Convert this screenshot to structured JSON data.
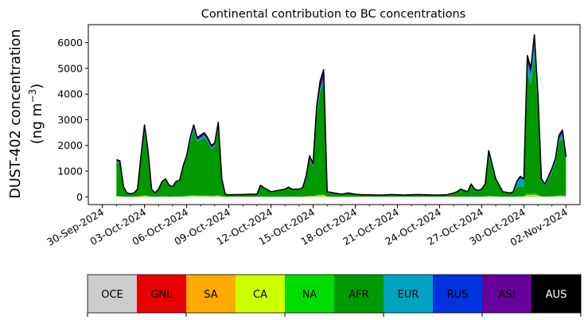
{
  "chart_data": {
    "type": "area",
    "stacked": true,
    "title": "Continental contribution to BC concentrations",
    "ylabel_line1": "DUST-402 concentration",
    "ylabel_line2_prefix": "(ng m",
    "ylabel_line2_sup": "−3",
    "ylabel_line2_suffix": ")",
    "xlim": [
      "2024-09-29",
      "2024-11-03"
    ],
    "ylim": [
      -300,
      6700
    ],
    "yticks": [
      0,
      1000,
      2000,
      3000,
      4000,
      5000,
      6000
    ],
    "xticks": [
      {
        "date": "2024-09-30",
        "label": "30-Sep-2024"
      },
      {
        "date": "2024-10-03",
        "label": "03-Oct-2024"
      },
      {
        "date": "2024-10-06",
        "label": "06-Oct-2024"
      },
      {
        "date": "2024-10-09",
        "label": "09-Oct-2024"
      },
      {
        "date": "2024-10-12",
        "label": "12-Oct-2024"
      },
      {
        "date": "2024-10-15",
        "label": "15-Oct-2024"
      },
      {
        "date": "2024-10-18",
        "label": "18-Oct-2024"
      },
      {
        "date": "2024-10-21",
        "label": "21-Oct-2024"
      },
      {
        "date": "2024-10-24",
        "label": "24-Oct-2024"
      },
      {
        "date": "2024-10-27",
        "label": "27-Oct-2024"
      },
      {
        "date": "2024-10-30",
        "label": "30-Oct-2024"
      },
      {
        "date": "2024-11-02",
        "label": "02-Nov-2024"
      }
    ],
    "x": [
      "2024-10-01T00:00",
      "2024-10-01T06:00",
      "2024-10-01T12:00",
      "2024-10-01T18:00",
      "2024-10-02T00:00",
      "2024-10-02T06:00",
      "2024-10-02T12:00",
      "2024-10-02T18:00",
      "2024-10-03T00:00",
      "2024-10-03T06:00",
      "2024-10-03T12:00",
      "2024-10-03T18:00",
      "2024-10-04T00:00",
      "2024-10-04T06:00",
      "2024-10-04T12:00",
      "2024-10-04T18:00",
      "2024-10-05T00:00",
      "2024-10-05T06:00",
      "2024-10-05T12:00",
      "2024-10-05T18:00",
      "2024-10-06T00:00",
      "2024-10-06T06:00",
      "2024-10-06T12:00",
      "2024-10-06T18:00",
      "2024-10-07T00:00",
      "2024-10-07T06:00",
      "2024-10-07T12:00",
      "2024-10-07T18:00",
      "2024-10-08T00:00",
      "2024-10-08T06:00",
      "2024-10-08T12:00",
      "2024-10-08T18:00",
      "2024-10-09T00:00",
      "2024-10-09T12:00",
      "2024-10-10T00:00",
      "2024-10-10T12:00",
      "2024-10-11T00:00",
      "2024-10-11T06:00",
      "2024-10-11T12:00",
      "2024-10-12T00:00",
      "2024-10-12T12:00",
      "2024-10-13T00:00",
      "2024-10-13T06:00",
      "2024-10-13T12:00",
      "2024-10-14T00:00",
      "2024-10-14T06:00",
      "2024-10-14T12:00",
      "2024-10-14T18:00",
      "2024-10-15T00:00",
      "2024-10-15T06:00",
      "2024-10-15T12:00",
      "2024-10-15T18:00",
      "2024-10-16T00:00",
      "2024-10-16T12:00",
      "2024-10-17T00:00",
      "2024-10-17T12:00",
      "2024-10-18T00:00",
      "2024-10-18T12:00",
      "2024-10-19T00:00",
      "2024-10-19T12:00",
      "2024-10-20T00:00",
      "2024-10-20T12:00",
      "2024-10-21T00:00",
      "2024-10-21T12:00",
      "2024-10-22T00:00",
      "2024-10-22T12:00",
      "2024-10-23T00:00",
      "2024-10-23T12:00",
      "2024-10-24T00:00",
      "2024-10-24T12:00",
      "2024-10-25T00:00",
      "2024-10-25T06:00",
      "2024-10-25T12:00",
      "2024-10-26T00:00",
      "2024-10-26T06:00",
      "2024-10-26T12:00",
      "2024-10-26T18:00",
      "2024-10-27T00:00",
      "2024-10-27T06:00",
      "2024-10-27T12:00",
      "2024-10-28T00:00",
      "2024-10-28T12:00",
      "2024-10-29T00:00",
      "2024-10-29T06:00",
      "2024-10-29T12:00",
      "2024-10-29T18:00",
      "2024-10-30T00:00",
      "2024-10-30T06:00",
      "2024-10-30T12:00",
      "2024-10-30T18:00",
      "2024-10-31T00:00",
      "2024-10-31T06:00",
      "2024-10-31T12:00",
      "2024-10-31T18:00",
      "2024-11-01T00:00",
      "2024-11-01T06:00",
      "2024-11-01T12:00",
      "2024-11-01T18:00",
      "2024-11-02T00:00"
    ],
    "total": [
      1450,
      1400,
      400,
      150,
      120,
      150,
      300,
      1600,
      2800,
      1800,
      300,
      150,
      300,
      600,
      700,
      450,
      400,
      600,
      650,
      1200,
      1600,
      2300,
      2800,
      2300,
      2400,
      2500,
      2300,
      2000,
      2100,
      2900,
      700,
      100,
      80,
      90,
      90,
      100,
      100,
      450,
      350,
      200,
      250,
      300,
      380,
      300,
      300,
      350,
      800,
      1600,
      1300,
      3500,
      4500,
      4950,
      200,
      150,
      100,
      150,
      100,
      80,
      80,
      70,
      70,
      90,
      80,
      70,
      80,
      90,
      80,
      70,
      70,
      80,
      150,
      200,
      300,
      200,
      500,
      300,
      250,
      300,
      500,
      1800,
      700,
      200,
      150,
      200,
      600,
      800,
      700,
      5500,
      5000,
      6300,
      4000,
      700,
      500,
      800,
      1100,
      1500,
      2400,
      2600,
      1550
    ],
    "series": [
      {
        "name": "OCE",
        "color": "#cccccc",
        "values": [
          2,
          2,
          1,
          1,
          1,
          1,
          1,
          3,
          5,
          3,
          1,
          1,
          1,
          2,
          2,
          1,
          1,
          2,
          2,
          3,
          4,
          5,
          6,
          5,
          5,
          5,
          5,
          4,
          4,
          5,
          2,
          1,
          1,
          1,
          1,
          1,
          1,
          2,
          1,
          1,
          1,
          1,
          2,
          1,
          1,
          1,
          2,
          3,
          3,
          6,
          8,
          8,
          1,
          1,
          1,
          1,
          1,
          1,
          1,
          1,
          1,
          1,
          1,
          1,
          1,
          1,
          1,
          1,
          1,
          1,
          1,
          1,
          1,
          1,
          2,
          1,
          1,
          1,
          2,
          4,
          2,
          1,
          1,
          1,
          2,
          3,
          3,
          10,
          10,
          12,
          8,
          2,
          2,
          2,
          3,
          4,
          5,
          5,
          4
        ]
      },
      {
        "name": "GNL",
        "color": "#e60000",
        "values": [
          2,
          2,
          1,
          1,
          1,
          1,
          1,
          3,
          5,
          3,
          1,
          1,
          1,
          2,
          2,
          1,
          1,
          2,
          2,
          3,
          4,
          5,
          6,
          5,
          5,
          5,
          5,
          4,
          4,
          5,
          2,
          1,
          1,
          1,
          1,
          1,
          1,
          2,
          1,
          1,
          1,
          1,
          2,
          1,
          1,
          1,
          2,
          3,
          3,
          6,
          8,
          8,
          1,
          1,
          1,
          1,
          1,
          1,
          1,
          1,
          1,
          1,
          1,
          1,
          1,
          1,
          1,
          1,
          1,
          1,
          1,
          1,
          1,
          1,
          2,
          1,
          1,
          1,
          2,
          4,
          2,
          1,
          1,
          1,
          2,
          3,
          3,
          10,
          10,
          12,
          8,
          2,
          2,
          2,
          3,
          4,
          5,
          5,
          4
        ]
      },
      {
        "name": "SA",
        "color": "#ffaa00",
        "values": [
          3,
          3,
          1,
          1,
          1,
          1,
          1,
          4,
          6,
          4,
          1,
          1,
          1,
          2,
          2,
          1,
          1,
          2,
          2,
          4,
          5,
          6,
          7,
          6,
          6,
          6,
          6,
          5,
          5,
          7,
          2,
          1,
          1,
          1,
          1,
          1,
          1,
          2,
          1,
          1,
          1,
          1,
          2,
          1,
          1,
          1,
          3,
          4,
          4,
          8,
          10,
          10,
          1,
          1,
          1,
          1,
          1,
          1,
          1,
          1,
          1,
          1,
          1,
          1,
          1,
          1,
          1,
          1,
          1,
          1,
          1,
          1,
          1,
          1,
          2,
          1,
          1,
          1,
          2,
          5,
          2,
          1,
          1,
          1,
          2,
          3,
          3,
          12,
          12,
          14,
          10,
          2,
          2,
          3,
          4,
          5,
          6,
          6,
          5
        ]
      },
      {
        "name": "CA",
        "color": "#ccff00",
        "values": [
          10,
          10,
          3,
          1,
          1,
          1,
          2,
          12,
          20,
          13,
          2,
          1,
          2,
          4,
          5,
          3,
          3,
          4,
          5,
          8,
          11,
          16,
          20,
          16,
          17,
          18,
          16,
          14,
          15,
          20,
          5,
          1,
          1,
          1,
          1,
          1,
          1,
          3,
          3,
          1,
          2,
          2,
          3,
          2,
          2,
          2,
          6,
          11,
          9,
          25,
          32,
          35,
          1,
          1,
          1,
          1,
          1,
          1,
          1,
          1,
          1,
          1,
          1,
          1,
          1,
          1,
          1,
          1,
          1,
          1,
          1,
          1,
          2,
          1,
          4,
          2,
          2,
          2,
          4,
          13,
          5,
          1,
          1,
          1,
          4,
          6,
          5,
          40,
          35,
          45,
          28,
          5,
          4,
          6,
          8,
          11,
          17,
          18,
          11
        ]
      },
      {
        "name": "NA",
        "color": "#00dd00",
        "values": [
          15,
          14,
          4,
          2,
          1,
          2,
          3,
          16,
          28,
          18,
          3,
          2,
          3,
          6,
          7,
          5,
          4,
          6,
          7,
          12,
          16,
          23,
          28,
          23,
          24,
          25,
          23,
          20,
          21,
          29,
          7,
          1,
          1,
          1,
          1,
          1,
          1,
          5,
          4,
          2,
          3,
          3,
          4,
          3,
          3,
          4,
          8,
          16,
          13,
          35,
          45,
          50,
          2,
          2,
          1,
          2,
          1,
          1,
          1,
          1,
          1,
          1,
          1,
          1,
          1,
          1,
          1,
          1,
          1,
          1,
          2,
          2,
          3,
          2,
          5,
          3,
          3,
          3,
          5,
          18,
          7,
          2,
          2,
          2,
          6,
          8,
          7,
          55,
          50,
          63,
          40,
          7,
          5,
          8,
          11,
          15,
          24,
          26,
          16
        ]
      },
      {
        "name": "AFR",
        "color": "#009900",
        "values": [
          1310,
          1265,
          360,
          133,
          106,
          133,
          266,
          1440,
          2520,
          1620,
          270,
          135,
          272,
          540,
          630,
          405,
          362,
          542,
          588,
          1085,
          1448,
          2080,
          2530,
          2080,
          2170,
          2260,
          2080,
          1808,
          1900,
          2620,
          630,
          82,
          63,
          73,
          73,
          82,
          82,
          400,
          308,
          176,
          220,
          265,
          333,
          265,
          262,
          305,
          700,
          1405,
          1140,
          3080,
          3960,
          4360,
          166,
          124,
          82,
          124,
          82,
          64,
          64,
          56,
          56,
          72,
          64,
          56,
          64,
          72,
          64,
          56,
          56,
          64,
          126,
          170,
          258,
          170,
          420,
          255,
          212,
          255,
          420,
          1560,
          600,
          168,
          124,
          168,
          355,
          400,
          350,
          4700,
          4250,
          5360,
          3400,
          580,
          415,
          670,
          930,
          1280,
          2060,
          2230,
          1330
        ]
      },
      {
        "name": "EUR",
        "color": "#00a3bf",
        "values": [
          40,
          38,
          12,
          5,
          4,
          5,
          9,
          44,
          80,
          50,
          9,
          5,
          9,
          18,
          20,
          13,
          12,
          18,
          19,
          34,
          45,
          64,
          78,
          64,
          67,
          70,
          64,
          56,
          59,
          81,
          20,
          3,
          2,
          3,
          3,
          3,
          3,
          13,
          10,
          6,
          7,
          9,
          11,
          9,
          9,
          11,
          23,
          45,
          36,
          98,
          126,
          139,
          6,
          5,
          3,
          5,
          3,
          2,
          2,
          2,
          2,
          3,
          2,
          2,
          2,
          3,
          2,
          2,
          2,
          2,
          8,
          12,
          15,
          12,
          30,
          18,
          15,
          18,
          30,
          88,
          40,
          10,
          8,
          12,
          180,
          300,
          280,
          400,
          380,
          440,
          300,
          60,
          35,
          55,
          80,
          100,
          150,
          160,
          100
        ]
      },
      {
        "name": "RUS",
        "color": "#0033dd",
        "values": [
          8,
          8,
          3,
          1,
          1,
          1,
          2,
          9,
          16,
          10,
          2,
          1,
          2,
          3,
          4,
          3,
          2,
          3,
          4,
          7,
          9,
          13,
          16,
          13,
          14,
          14,
          13,
          11,
          12,
          16,
          4,
          1,
          1,
          1,
          1,
          1,
          1,
          2,
          2,
          1,
          1,
          2,
          2,
          2,
          2,
          2,
          5,
          9,
          7,
          20,
          25,
          28,
          1,
          1,
          1,
          1,
          1,
          1,
          1,
          1,
          1,
          1,
          1,
          1,
          1,
          1,
          1,
          1,
          1,
          1,
          1,
          1,
          2,
          1,
          3,
          2,
          1,
          2,
          3,
          10,
          4,
          1,
          1,
          1,
          3,
          5,
          4,
          30,
          28,
          34,
          22,
          4,
          3,
          4,
          6,
          8,
          13,
          14,
          8
        ]
      },
      {
        "name": "ASI",
        "color": "#660099",
        "values": [
          50,
          48,
          12,
          4,
          4,
          5,
          12,
          55,
          100,
          65,
          10,
          4,
          8,
          20,
          22,
          16,
          12,
          20,
          20,
          40,
          54,
          80,
          100,
          82,
          85,
          90,
          82,
          72,
          75,
          110,
          26,
          8,
          8,
          6,
          6,
          8,
          8,
          18,
          16,
          10,
          12,
          14,
          18,
          14,
          14,
          20,
          48,
          98,
          80,
          210,
          270,
          300,
          18,
          12,
          8,
          12,
          8,
          6,
          6,
          5,
          5,
          8,
          6,
          5,
          6,
          8,
          6,
          5,
          5,
          7,
          8,
          8,
          14,
          10,
          28,
          15,
          12,
          15,
          30,
          90,
          35,
          14,
          10,
          12,
          40,
          65,
          40,
          220,
          200,
          280,
          160,
          35,
          28,
          45,
          50,
          65,
          110,
          120,
          70
        ]
      },
      {
        "name": "AUS",
        "color": "#000000",
        "values": [
          10,
          10,
          3,
          1,
          1,
          1,
          3,
          14,
          20,
          14,
          1,
          1,
          1,
          3,
          6,
          2,
          2,
          1,
          1,
          4,
          4,
          8,
          9,
          6,
          7,
          7,
          6,
          6,
          5,
          7,
          2,
          2,
          1,
          2,
          2,
          2,
          2,
          3,
          4,
          1,
          2,
          2,
          3,
          2,
          2,
          3,
          3,
          6,
          5,
          12,
          16,
          12,
          3,
          2,
          1,
          2,
          1,
          1,
          1,
          1,
          1,
          1,
          1,
          1,
          1,
          1,
          1,
          1,
          1,
          1,
          1,
          2,
          1,
          0,
          4,
          2,
          2,
          2,
          2,
          8,
          3,
          2,
          1,
          1,
          6,
          7,
          5,
          23,
          25,
          36,
          24,
          3,
          4,
          5,
          5,
          8,
          14,
          16,
          1
        ]
      }
    ]
  }
}
